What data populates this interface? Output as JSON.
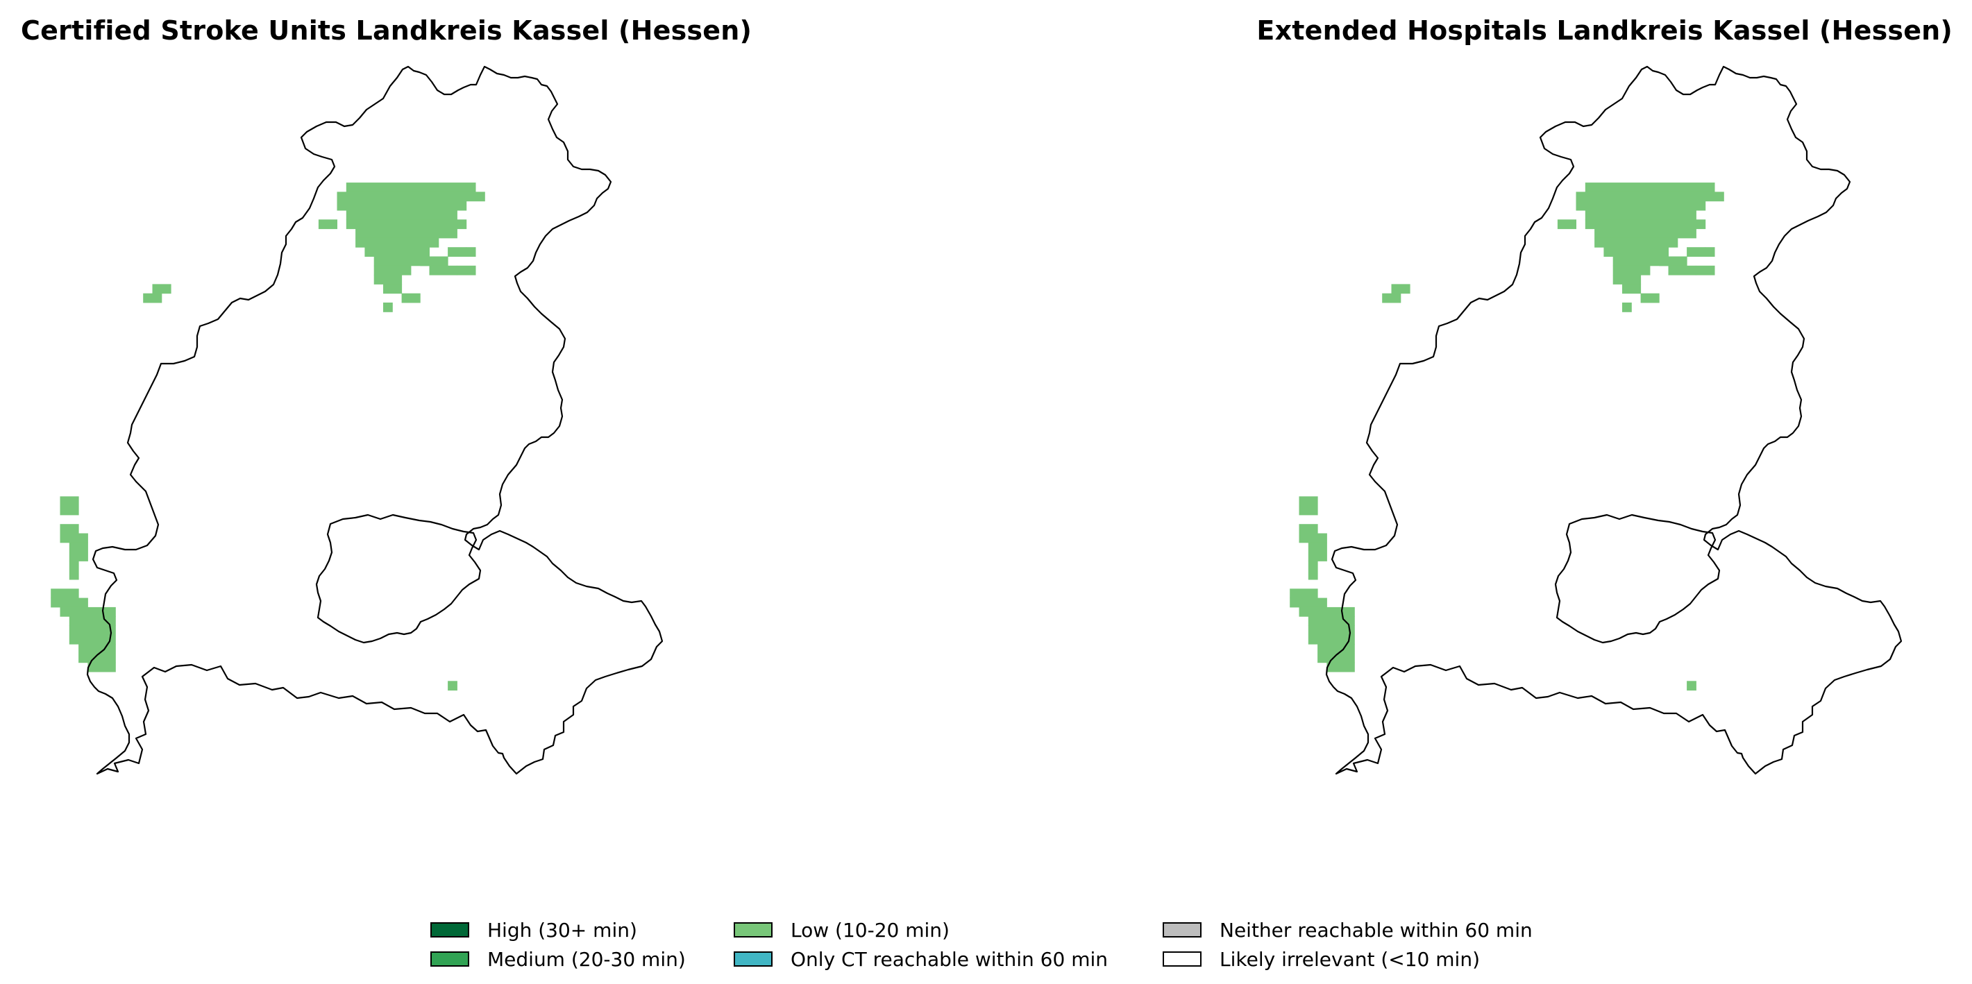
{
  "maps": [
    {
      "title": "Certified Stroke Units Landkreis Kassel (Hessen)",
      "classes_present": [
        "Low (10-20 min)"
      ]
    },
    {
      "title": "Extended Hospitals Landkreis Kassel (Hessen)",
      "classes_present": [
        "Low (10-20 min)"
      ]
    }
  ],
  "legend": {
    "items": [
      {
        "label": "High (30+ min)",
        "color": "#006837"
      },
      {
        "label": "Medium (20-30 min)",
        "color": "#31a354"
      },
      {
        "label": "Low (10-20 min)",
        "color": "#78c679"
      },
      {
        "label": "Only CT reachable within 60 min",
        "color": "#41b6c4"
      },
      {
        "label": "Neither reachable within 60 min",
        "color": "#bdbdbd"
      },
      {
        "label": "Likely irrelevant (<10 min)",
        "color": "#ffffff"
      }
    ]
  }
}
